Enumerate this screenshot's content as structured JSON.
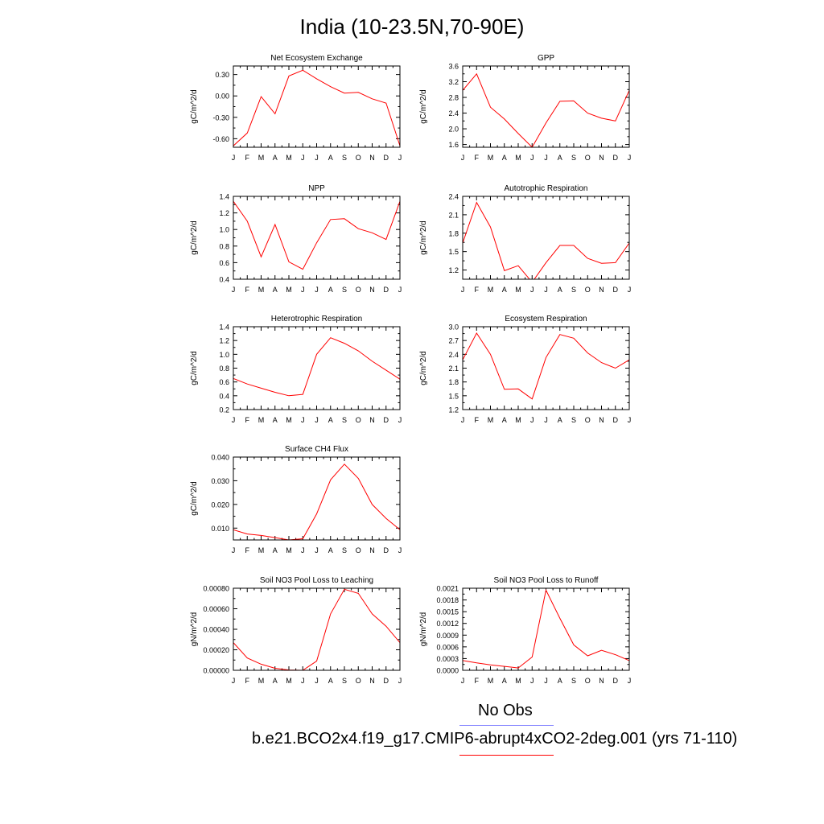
{
  "title": "India (10-23.5N,70-90E)",
  "legend": {
    "obs_label": "No Obs",
    "obs_color": "#8888ff",
    "model_label": "b.e21.BCO2x4.f19_g17.CMIP6-abrupt4xCO2-2deg.001 (yrs 71-110)",
    "model_color": "#ff0000"
  },
  "chart_data": [
    {
      "type": "line",
      "title": "Net Ecosystem Exchange",
      "ylabel": "gC/m^2/d",
      "categories": [
        "J",
        "F",
        "M",
        "A",
        "M",
        "J",
        "J",
        "A",
        "S",
        "O",
        "N",
        "D",
        "J"
      ],
      "ylim": [
        -0.72,
        0.42
      ],
      "yticks": [
        0.3,
        0.0,
        -0.3,
        -0.6
      ],
      "ytick_labels": [
        "0.30",
        "0.00",
        "-0.30",
        "-0.60"
      ],
      "series": [
        {
          "values": [
            -0.7,
            -0.52,
            -0.01,
            -0.25,
            0.28,
            0.36,
            0.24,
            0.13,
            0.04,
            0.05,
            -0.04,
            -0.1,
            -0.7
          ]
        }
      ]
    },
    {
      "type": "line",
      "title": "GPP",
      "ylabel": "gC/m^2/d",
      "categories": [
        "J",
        "F",
        "M",
        "A",
        "M",
        "J",
        "J",
        "A",
        "S",
        "O",
        "N",
        "D",
        "J"
      ],
      "ylim": [
        1.53,
        3.6
      ],
      "yticks": [
        3.6,
        3.2,
        2.8,
        2.4,
        2.0,
        1.6
      ],
      "ytick_labels": [
        "3.6",
        "3.2",
        "2.8",
        "2.4",
        "2.0",
        "1.6"
      ],
      "series": [
        {
          "values": [
            2.98,
            3.4,
            2.55,
            2.25,
            1.88,
            1.53,
            2.15,
            2.7,
            2.71,
            2.4,
            2.27,
            2.2,
            2.98
          ]
        }
      ]
    },
    {
      "type": "line",
      "title": "NPP",
      "ylabel": "gC/m^2/d",
      "categories": [
        "J",
        "F",
        "M",
        "A",
        "M",
        "J",
        "J",
        "A",
        "S",
        "O",
        "N",
        "D",
        "J"
      ],
      "ylim": [
        0.4,
        1.4
      ],
      "yticks": [
        1.4,
        1.2,
        1.0,
        0.8,
        0.6,
        0.4
      ],
      "ytick_labels": [
        "1.4",
        "1.2",
        "1.0",
        "0.8",
        "0.6",
        "0.4"
      ],
      "series": [
        {
          "values": [
            1.34,
            1.1,
            0.67,
            1.06,
            0.61,
            0.52,
            0.84,
            1.12,
            1.13,
            1.01,
            0.96,
            0.88,
            1.34
          ]
        }
      ]
    },
    {
      "type": "line",
      "title": "Autotrophic Respiration",
      "ylabel": "gC/m^2/d",
      "categories": [
        "J",
        "F",
        "M",
        "A",
        "M",
        "J",
        "J",
        "A",
        "S",
        "O",
        "N",
        "D",
        "J"
      ],
      "ylim": [
        1.05,
        2.4
      ],
      "yticks": [
        2.4,
        2.1,
        1.8,
        1.5,
        1.2
      ],
      "ytick_labels": [
        "2.4",
        "2.1",
        "1.8",
        "1.5",
        "1.2"
      ],
      "series": [
        {
          "values": [
            1.64,
            2.3,
            1.9,
            1.19,
            1.27,
            1.0,
            1.32,
            1.6,
            1.6,
            1.39,
            1.31,
            1.32,
            1.64
          ]
        }
      ]
    },
    {
      "type": "line",
      "title": "Heterotrophic Respiration",
      "ylabel": "gC/m^2/d",
      "categories": [
        "J",
        "F",
        "M",
        "A",
        "M",
        "J",
        "J",
        "A",
        "S",
        "O",
        "N",
        "D",
        "J"
      ],
      "ylim": [
        0.2,
        1.4
      ],
      "yticks": [
        1.4,
        1.2,
        1.0,
        0.8,
        0.6,
        0.4,
        0.2
      ],
      "ytick_labels": [
        "1.4",
        "1.2",
        "1.0",
        "0.8",
        "0.6",
        "0.4",
        "0.2"
      ],
      "series": [
        {
          "values": [
            0.65,
            0.57,
            0.51,
            0.45,
            0.4,
            0.42,
            1.0,
            1.24,
            1.16,
            1.05,
            0.9,
            0.77,
            0.64
          ]
        }
      ]
    },
    {
      "type": "line",
      "title": "Ecosystem Respiration",
      "ylabel": "gC/m^2/d",
      "categories": [
        "J",
        "F",
        "M",
        "A",
        "M",
        "J",
        "J",
        "A",
        "S",
        "O",
        "N",
        "D",
        "J"
      ],
      "ylim": [
        1.2,
        3.0
      ],
      "yticks": [
        3.0,
        2.7,
        2.4,
        2.1,
        1.8,
        1.5,
        1.2
      ],
      "ytick_labels": [
        "3.0",
        "2.7",
        "2.4",
        "2.1",
        "1.8",
        "1.5",
        "1.2"
      ],
      "series": [
        {
          "values": [
            2.28,
            2.86,
            2.4,
            1.64,
            1.65,
            1.43,
            2.33,
            2.83,
            2.75,
            2.43,
            2.22,
            2.1,
            2.28
          ]
        }
      ]
    },
    {
      "type": "line",
      "title": "Surface CH4 Flux",
      "ylabel": "gC/m^2/d",
      "categories": [
        "J",
        "F",
        "M",
        "A",
        "M",
        "J",
        "J",
        "A",
        "S",
        "O",
        "N",
        "D",
        "J"
      ],
      "ylim": [
        0.005,
        0.04
      ],
      "yticks": [
        0.04,
        0.03,
        0.02,
        0.01
      ],
      "ytick_labels": [
        "0.040",
        "0.030",
        "0.020",
        "0.010"
      ],
      "series": [
        {
          "values": [
            0.0093,
            0.0075,
            0.0069,
            0.006,
            0.005,
            0.0055,
            0.016,
            0.0304,
            0.037,
            0.031,
            0.02,
            0.0141,
            0.0093
          ]
        }
      ]
    },
    {
      "type": "line",
      "title": "Soil NO3 Pool Loss to Leaching",
      "ylabel": "gN/m^2/d",
      "categories": [
        "J",
        "F",
        "M",
        "A",
        "M",
        "J",
        "J",
        "A",
        "S",
        "O",
        "N",
        "D",
        "J"
      ],
      "ylim": [
        0,
        0.0008
      ],
      "yticks": [
        0.0008,
        0.0006,
        0.0004,
        0.0002,
        0.0
      ],
      "ytick_labels": [
        "0.00080",
        "0.00060",
        "0.00040",
        "0.00020",
        "0.00000"
      ],
      "series": [
        {
          "values": [
            0.00027,
            0.00012,
            6e-05,
            2e-05,
            3e-06,
            0.0,
            9e-05,
            0.00055,
            0.00079,
            0.00075,
            0.00055,
            0.00043,
            0.00027
          ]
        }
      ]
    },
    {
      "type": "line",
      "title": "Soil NO3 Pool Loss to Runoff",
      "ylabel": "gN/m^2/d",
      "categories": [
        "J",
        "F",
        "M",
        "A",
        "M",
        "J",
        "J",
        "A",
        "S",
        "O",
        "N",
        "D",
        "J"
      ],
      "ylim": [
        0,
        0.0021
      ],
      "yticks": [
        0.0021,
        0.0018,
        0.0015,
        0.0012,
        0.0009,
        0.0006,
        0.0003,
        0.0
      ],
      "ytick_labels": [
        "0.0021",
        "0.0018",
        "0.0015",
        "0.0012",
        "0.0009",
        "0.0006",
        "0.0003",
        "0.0000"
      ],
      "series": [
        {
          "values": [
            0.00025,
            0.00019,
            0.00014,
            0.0001,
            6e-05,
            0.00034,
            0.00205,
            0.00133,
            0.00065,
            0.00037,
            0.00051,
            0.0004,
            0.00025
          ]
        }
      ]
    }
  ]
}
